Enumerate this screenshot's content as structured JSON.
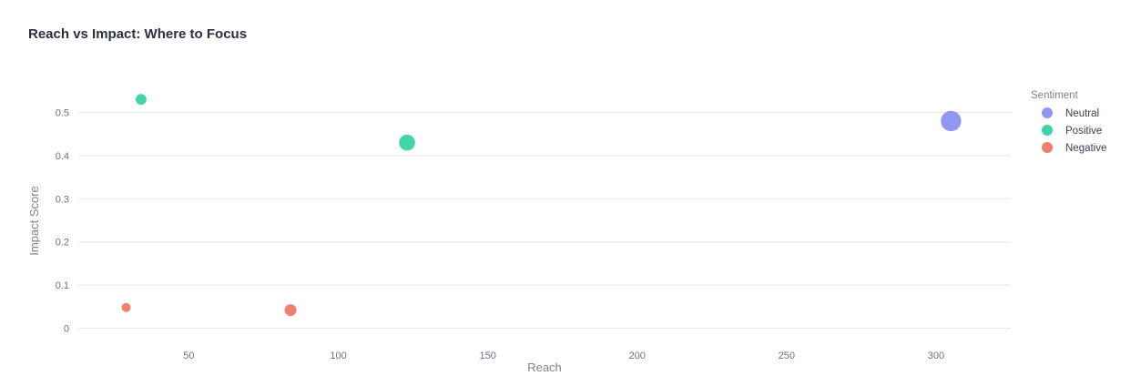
{
  "chart_data": {
    "type": "scatter",
    "title": "Reach vs Impact: Where to Focus",
    "xlabel": "Reach",
    "ylabel": "Impact Score",
    "xlim": [
      13,
      325
    ],
    "ylim": [
      -0.02,
      0.56
    ],
    "xticks": [
      50,
      100,
      150,
      200,
      250,
      300
    ],
    "yticks": [
      0,
      0.1,
      0.2,
      0.3,
      0.4,
      0.5
    ],
    "grid": true,
    "legend_title": "Sentiment",
    "legend_position": "right",
    "series": [
      {
        "name": "Neutral",
        "color": "#8f96f4",
        "points": [
          {
            "x": 305,
            "y": 0.48,
            "size": 5
          }
        ]
      },
      {
        "name": "Positive",
        "color": "#3fd4a8",
        "points": [
          {
            "x": 34,
            "y": 0.53,
            "size": 1.4
          },
          {
            "x": 123,
            "y": 0.43,
            "size": 3.1
          }
        ]
      },
      {
        "name": "Negative",
        "color": "#ef7f6b",
        "points": [
          {
            "x": 29,
            "y": 0.048,
            "size": 1
          },
          {
            "x": 84,
            "y": 0.042,
            "size": 1.7
          }
        ]
      }
    ]
  }
}
